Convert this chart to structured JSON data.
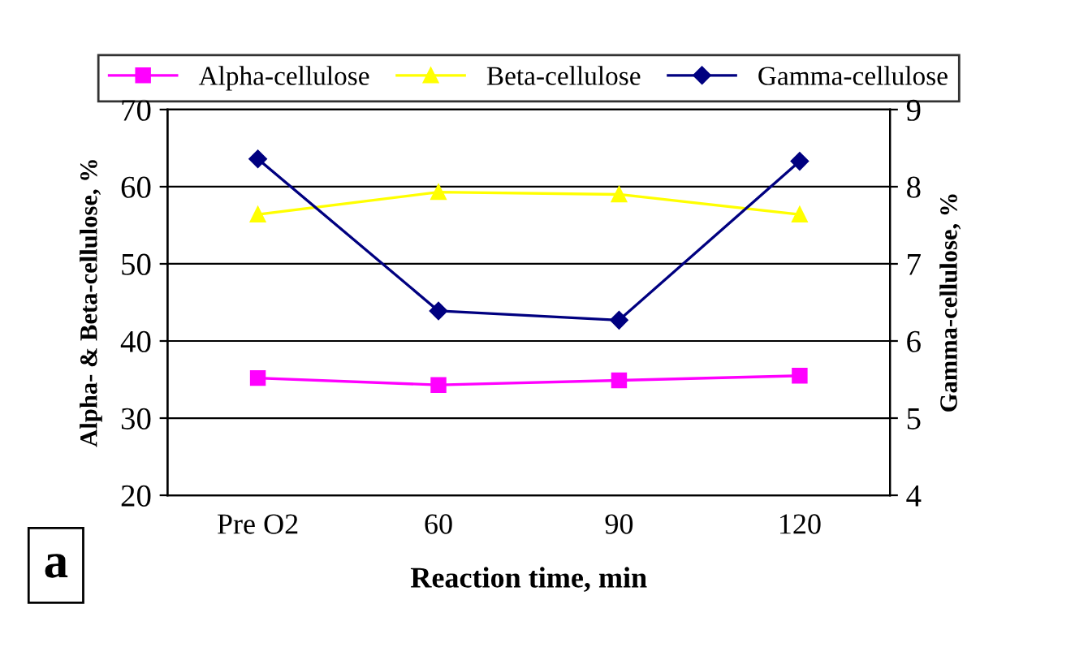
{
  "chart_data": {
    "type": "line",
    "categories": [
      "Pre O2",
      "60",
      "90",
      "120"
    ],
    "xlabel": "Reaction time, min",
    "ylabel": "Alpha- & Beta-cellulose, %",
    "y2label": "Gamma-cellulose, %",
    "series": [
      {
        "name": "Alpha-cellulose",
        "color": "#ff00ff",
        "marker": "square",
        "values": [
          35.2,
          34.3,
          34.9,
          35.5
        ]
      },
      {
        "name": "Beta-cellulose",
        "color": "#ffff00",
        "marker": "triangle",
        "values": [
          56.4,
          59.3,
          59.0,
          56.4
        ]
      },
      {
        "name": "Gamma-cellulose",
        "color": "#000080",
        "marker": "diamond",
        "axis": "y2",
        "values": [
          8.36,
          6.39,
          6.27,
          8.33
        ]
      }
    ],
    "ylim": [
      20,
      70
    ],
    "yticks": [
      20,
      30,
      40,
      50,
      60,
      70
    ],
    "y2lim": [
      4,
      9
    ],
    "y2ticks": [
      4,
      5,
      6,
      7,
      8,
      9
    ],
    "grid": "y",
    "legend": "top",
    "line_style": "solid",
    "annotations": [
      "a"
    ]
  }
}
